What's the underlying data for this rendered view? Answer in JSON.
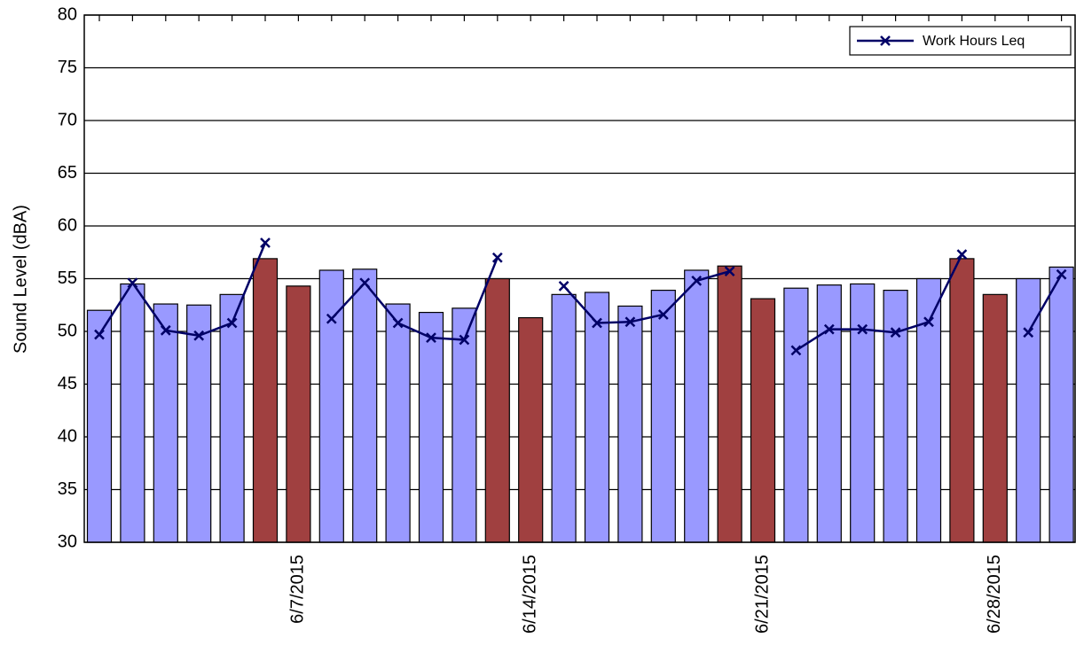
{
  "chart_data": {
    "type": "bar-line",
    "y_label": "Sound Level (dBA)",
    "categories": [
      null,
      null,
      null,
      null,
      null,
      null,
      "6/7/2015",
      null,
      null,
      null,
      null,
      null,
      null,
      "6/14/2015",
      null,
      null,
      null,
      null,
      null,
      null,
      "6/21/2015",
      null,
      null,
      null,
      null,
      null,
      null,
      "6/28/2015",
      null,
      null
    ],
    "series": [
      {
        "type": "bar",
        "colors": [
          "#9999ff",
          "#9999ff",
          "#9999ff",
          "#9999ff",
          "#9999ff",
          "#a04040",
          "#a04040",
          "#9999ff",
          "#9999ff",
          "#9999ff",
          "#9999ff",
          "#9999ff",
          "#a04040",
          "#a04040",
          "#9999ff",
          "#9999ff",
          "#9999ff",
          "#9999ff",
          "#9999ff",
          "#a04040",
          "#a04040",
          "#9999ff",
          "#9999ff",
          "#9999ff",
          "#9999ff",
          "#9999ff",
          "#a04040",
          "#a04040",
          "#9999ff",
          "#9999ff"
        ],
        "values": [
          52.0,
          54.5,
          52.6,
          52.5,
          53.5,
          56.9,
          54.3,
          55.8,
          55.9,
          52.6,
          51.8,
          52.2,
          55.0,
          51.3,
          53.5,
          53.7,
          52.4,
          53.9,
          55.8,
          56.2,
          53.1,
          54.1,
          54.4,
          54.5,
          53.9,
          55.0,
          56.9,
          53.5,
          55.0,
          56.1
        ]
      },
      {
        "type": "line",
        "name": "Work Hours Leq",
        "color": "#000066",
        "values": [
          49.7,
          54.6,
          50.1,
          49.6,
          50.8,
          58.4,
          null,
          51.2,
          54.6,
          50.8,
          49.4,
          49.2,
          57.0,
          null,
          54.3,
          50.8,
          50.9,
          51.6,
          54.8,
          55.7,
          null,
          48.2,
          50.2,
          50.2,
          49.9,
          50.9,
          57.3,
          null,
          49.9,
          55.4
        ]
      }
    ],
    "ylim": [
      30,
      80
    ],
    "yticks": [
      30,
      35,
      40,
      45,
      50,
      55,
      60,
      65,
      70,
      75,
      80
    ],
    "grid": true,
    "legend": "upper right"
  }
}
